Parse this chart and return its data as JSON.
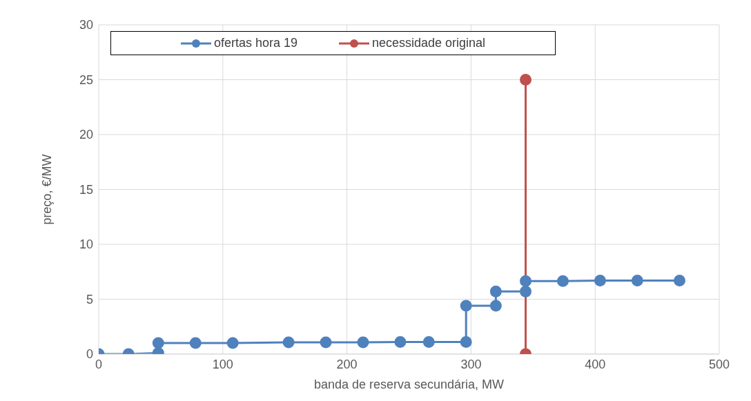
{
  "chart_data": {
    "type": "line",
    "xlabel": "banda de reserva secundária, MW",
    "ylabel": "preço, €/MW",
    "xlim": [
      0,
      500
    ],
    "xticks": [
      0,
      100,
      200,
      300,
      400,
      500
    ],
    "ylim": [
      0,
      30
    ],
    "yticks": [
      0,
      5,
      10,
      15,
      20,
      25,
      30
    ],
    "grid": true,
    "legend": "top",
    "marker": "circle",
    "line_style": "solid",
    "series": [
      {
        "name": "ofertas hora 19",
        "color": "#4f81bd",
        "x": [
          0,
          24,
          48,
          48,
          78,
          108,
          153,
          183,
          213,
          243,
          266,
          296,
          296,
          320,
          320,
          344,
          344,
          374,
          404,
          434,
          468
        ],
        "values": [
          0,
          0,
          0.1,
          1,
          1,
          1,
          1.07,
          1.07,
          1.07,
          1.1,
          1.1,
          1.1,
          4.4,
          4.4,
          5.7,
          5.7,
          6.65,
          6.65,
          6.7,
          6.7,
          6.7
        ]
      },
      {
        "name": "necessidade original",
        "color": "#c0504d",
        "x": [
          344,
          344
        ],
        "values": [
          0,
          25
        ]
      }
    ]
  }
}
